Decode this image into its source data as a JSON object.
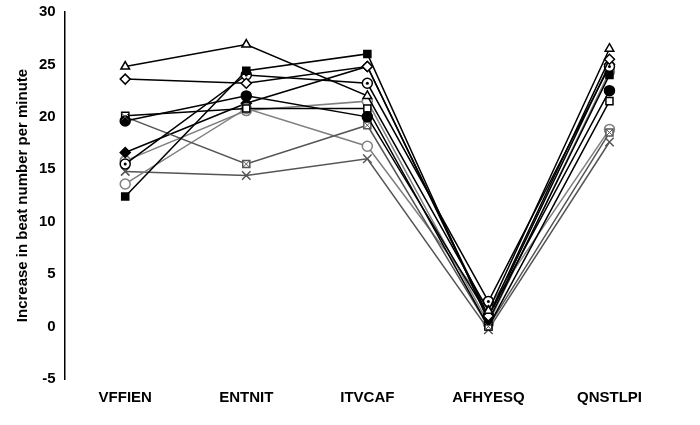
{
  "chart_data": {
    "type": "line",
    "y_label": "Increase in beat number per minute",
    "categories": [
      "VFFIEN",
      "ENTNIT",
      "ITVCAF",
      "AFHYESQ",
      "QNSTLPI"
    ],
    "series": [
      {
        "color": "#000000",
        "marker": "triangle-open",
        "values": [
          24.8,
          26.9,
          22.0,
          1.5,
          26.5
        ]
      },
      {
        "color": "#000000",
        "marker": "diamond-open",
        "values": [
          23.6,
          23.2,
          24.8,
          1.0,
          25.5
        ]
      },
      {
        "color": "#000000",
        "marker": "square",
        "values": [
          12.4,
          24.4,
          26.0,
          0.5,
          24.0
        ]
      },
      {
        "color": "#000000",
        "marker": "circle",
        "values": [
          19.6,
          22.0,
          20.0,
          1.0,
          22.5
        ]
      },
      {
        "color": "#000000",
        "marker": "circle-dot",
        "values": [
          15.5,
          24.0,
          23.2,
          2.4,
          24.8
        ]
      },
      {
        "color": "#000000",
        "marker": "square-open",
        "values": [
          20.1,
          20.8,
          20.8,
          0.0,
          21.5
        ]
      },
      {
        "color": "#555555",
        "marker": "square-x",
        "values": [
          20.0,
          15.5,
          19.2,
          0.0,
          18.5
        ]
      },
      {
        "color": "#808080",
        "marker": "circle-open",
        "values": [
          13.6,
          20.8,
          17.2,
          1.8,
          18.8
        ]
      },
      {
        "color": "#000000",
        "marker": "diamond",
        "values": [
          16.6,
          21.3,
          24.8,
          0.8,
          25.0
        ]
      },
      {
        "color": "#555555",
        "marker": "bowtie",
        "values": [
          14.8,
          14.4,
          16.0,
          -0.3,
          17.6
        ]
      },
      {
        "color": "#808080",
        "marker": "circle-open",
        "values": [
          15.8,
          20.6,
          21.5,
          0.3,
          24.3
        ]
      }
    ],
    "ylim": [
      -5,
      30
    ],
    "yticks": [
      -5,
      0,
      5,
      10,
      15,
      20,
      25,
      30
    ],
    "grid": false
  }
}
